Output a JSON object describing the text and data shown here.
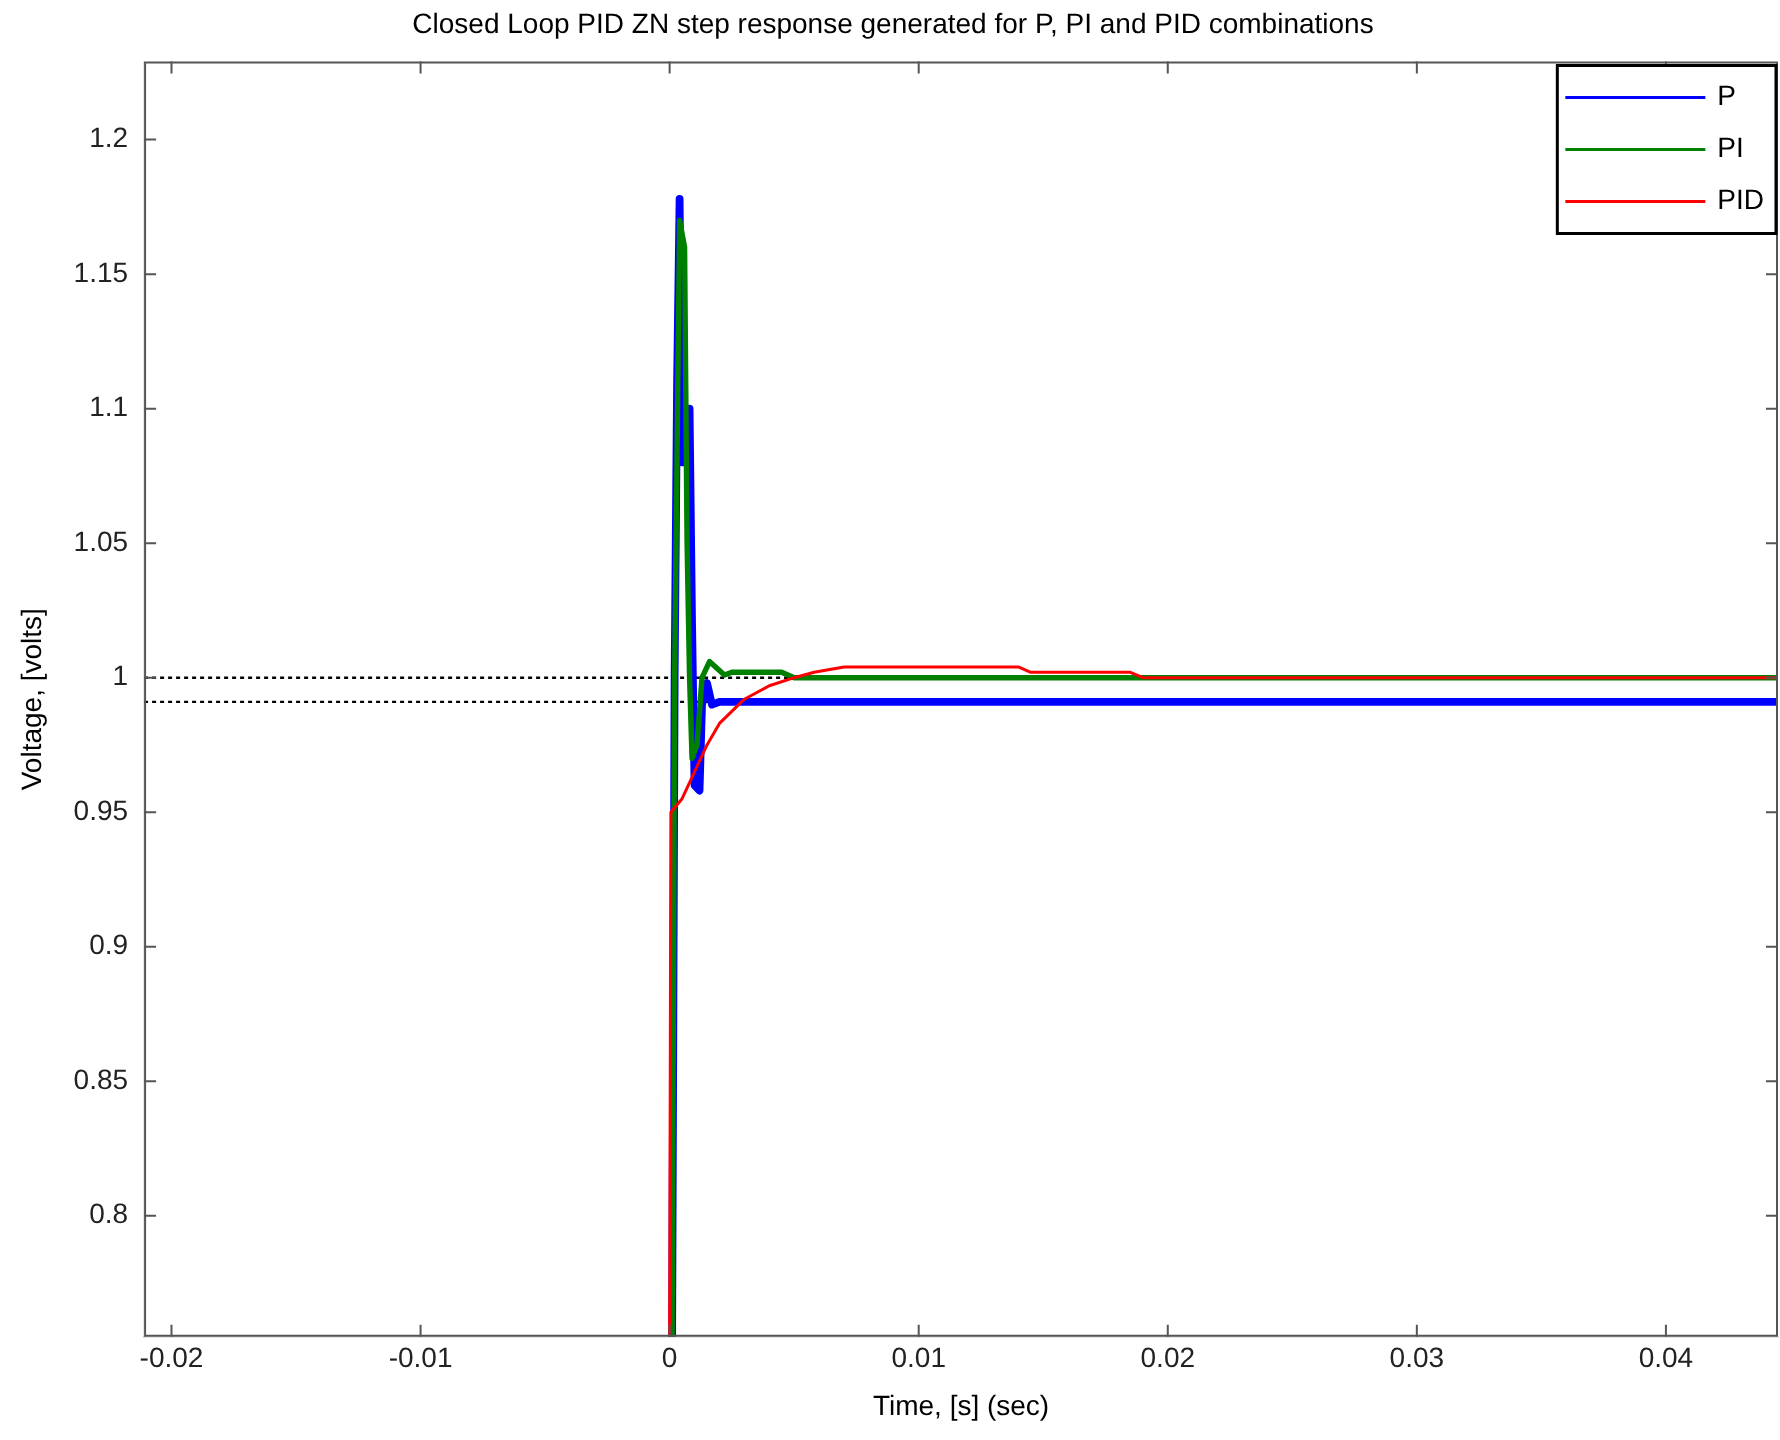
{
  "chart_data": {
    "type": "line",
    "title": "Closed Loop PID ZN step response generated for P, PI and PID combinations",
    "xlabel": "Time, [s] (sec)",
    "ylabel": "Voltage, [volts]",
    "xlim": [
      -0.0211,
      0.0445
    ],
    "ylim": [
      0.755,
      1.229
    ],
    "xticks": [
      -0.02,
      -0.01,
      0,
      0.01,
      0.02,
      0.03,
      0.04
    ],
    "yticks": [
      0.8,
      0.85,
      0.9,
      0.95,
      1,
      1.05,
      1.1,
      1.15,
      1.2
    ],
    "grid": false,
    "legend": "top right",
    "marker": "none",
    "line_style": "solid",
    "series": [
      {
        "name": "P",
        "color": "#0000ff",
        "x": [
          0.0001,
          0.0002,
          0.0003,
          0.0004,
          0.0005,
          0.0008,
          0.0009,
          0.001,
          0.0012,
          0.0013,
          0.0015,
          0.0017,
          0.002,
          0.0445
        ],
        "values": [
          0.755,
          1.0,
          1.11,
          1.178,
          1.08,
          1.1,
          1.02,
          0.96,
          0.958,
          0.99,
          0.998,
          0.99,
          0.991,
          0.991
        ]
      },
      {
        "name": "PI",
        "color": "#008000",
        "x": [
          0.0001,
          0.0002,
          0.0004,
          0.0006,
          0.0007,
          0.0008,
          0.0009,
          0.0011,
          0.0013,
          0.0016,
          0.0022,
          0.0025,
          0.0045,
          0.005,
          0.0445
        ],
        "values": [
          0.755,
          1.0,
          1.17,
          1.16,
          1.05,
          1.0,
          0.97,
          0.975,
          1.0,
          1.006,
          1.001,
          1.002,
          1.002,
          1.0,
          1.0
        ]
      },
      {
        "name": "PID",
        "color": "#ff0000",
        "x": [
          0,
          5e-05,
          0.0005,
          0.001,
          0.0015,
          0.002,
          0.003,
          0.004,
          0.005,
          0.0058,
          0.007,
          0.014,
          0.0145,
          0.0185,
          0.019,
          0.0445
        ],
        "values": [
          0.755,
          0.95,
          0.955,
          0.965,
          0.975,
          0.983,
          0.992,
          0.997,
          1.0,
          1.002,
          1.004,
          1.004,
          1.002,
          1.002,
          1.0,
          1.0
        ]
      }
    ],
    "ref_lines": [
      {
        "axis": "y",
        "value": 1,
        "color": "#000000",
        "line_style": "dotted"
      },
      {
        "axis": "y",
        "value": 0.991,
        "color": "#000000",
        "line_style": "dotted"
      }
    ]
  }
}
